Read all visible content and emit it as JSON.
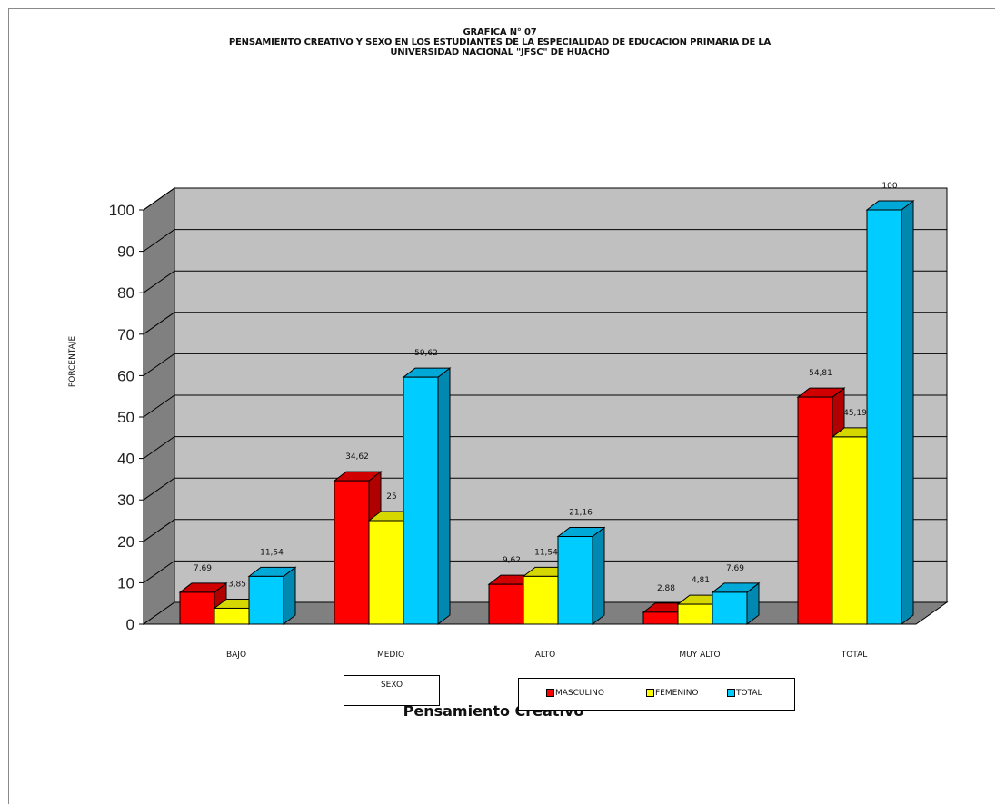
{
  "chart_data": {
    "type": "bar",
    "title": "GRAFICA N° 07",
    "subtitle_line1": "PENSAMIENTO CREATIVO Y SEXO  EN LOS ESTUDIANTES  DE LA ESPECIALIDAD DE EDUCACION  PRIMARIA  DE LA",
    "subtitle_line2": "UNIVERSIDAD NACIONAL \"JFSC\" DE HUACHO",
    "xlabel": "Pensamiento Creativo",
    "ylabel": "PORCENTAJE",
    "ylim": [
      0,
      100
    ],
    "yticks": [
      "0",
      "10",
      "20",
      "30",
      "40",
      "50",
      "60",
      "70",
      "80",
      "90",
      "100"
    ],
    "categories": [
      "BAJO",
      "MEDIO",
      "ALTO",
      "MUY ALTO",
      "TOTAL"
    ],
    "series": [
      {
        "name": "MASCULINO",
        "color": "#ff0000",
        "side_color": "#b00000",
        "top_color": "#d00000",
        "values": [
          7.69,
          34.62,
          9.62,
          2.88,
          54.81
        ],
        "labels": [
          "7,69",
          "34,62",
          "9,62",
          "2,88",
          "54,81"
        ]
      },
      {
        "name": "FEMENINO",
        "color": "#ffff00",
        "side_color": "#b3b300",
        "top_color": "#d6d600",
        "values": [
          3.85,
          25,
          11.54,
          4.81,
          45.19
        ],
        "labels": [
          "3,85",
          "25",
          "11,54",
          "4,81",
          "45,19"
        ]
      },
      {
        "name": "TOTAL",
        "color": "#00ccff",
        "side_color": "#0088b0",
        "top_color": "#00a8d8",
        "values": [
          11.54,
          59.62,
          21.16,
          7.69,
          100
        ],
        "labels": [
          "11,54",
          "59,62",
          "21,16",
          "7,69",
          "100"
        ]
      }
    ],
    "grid": true,
    "legend_position": "bottom",
    "legend_title": "SEXO",
    "wall_color": "#c0c0c0",
    "side_wall_color": "#808080",
    "floor_color": "#808080"
  }
}
